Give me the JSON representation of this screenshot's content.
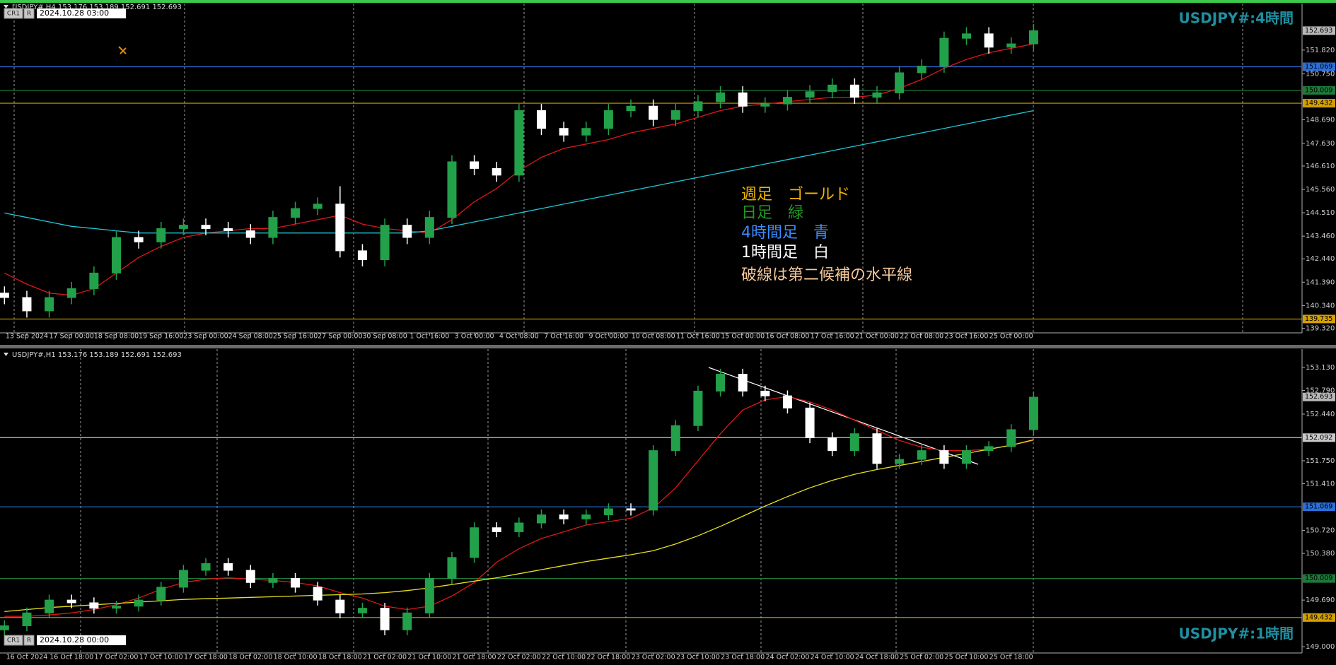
{
  "chart_data": [
    {
      "type": "candlestick",
      "header": "USDJPY#,H4  153.176 153.189 152.691 152.693",
      "buttons": [
        "CR1",
        "R"
      ],
      "date_label": "2024.10.28 03:00",
      "title": "USDJPY#:4時間",
      "annotations": [
        {
          "text": "週足　ゴールド",
          "color": "#f0b400"
        },
        {
          "text": "日足　緑",
          "color": "#1f9a1f"
        },
        {
          "text": "4時間足　青",
          "color": "#3a8cff"
        },
        {
          "text": "1時間足　白",
          "color": "#ffffff"
        },
        {
          "text": "破線は第二候補の水平線",
          "color": "#f5c89a"
        }
      ],
      "xlim": [
        -0.2,
        58
      ],
      "xticks": [
        {
          "value": 1,
          "label": "13 Sep 2024"
        },
        {
          "value": 3,
          "label": "17 Sep 00:00"
        },
        {
          "value": 5,
          "label": "18 Sep 08:00"
        },
        {
          "value": 7,
          "label": "19 Sep 16:00"
        },
        {
          "value": 9,
          "label": "23 Sep 00:00"
        },
        {
          "value": 11,
          "label": "24 Sep 08:00"
        },
        {
          "value": 13,
          "label": "25 Sep 16:00"
        },
        {
          "value": 15,
          "label": "27 Sep 00:00"
        },
        {
          "value": 17,
          "label": "30 Sep 08:00"
        },
        {
          "value": 19,
          "label": "1 Oct 16:00"
        },
        {
          "value": 21,
          "label": "3 Oct 00:00"
        },
        {
          "value": 23,
          "label": "4 Oct 08:00"
        },
        {
          "value": 25,
          "label": "7 Oct 16:00"
        },
        {
          "value": 27,
          "label": "9 Oct 00:00"
        },
        {
          "value": 29,
          "label": "10 Oct 08:00"
        },
        {
          "value": 31,
          "label": "11 Oct 16:00"
        },
        {
          "value": 33,
          "label": "15 Oct 00:00"
        },
        {
          "value": 35,
          "label": "16 Oct 08:00"
        },
        {
          "value": 37,
          "label": "17 Oct 16:00"
        },
        {
          "value": 39,
          "label": "21 Oct 00:00"
        },
        {
          "value": 41,
          "label": "22 Oct 08:00"
        },
        {
          "value": 43,
          "label": "23 Oct 16:00"
        },
        {
          "value": 45,
          "label": "25 Oct 00:00"
        }
      ],
      "ylim": [
        139.24,
        153.88
      ],
      "yticks": [
        {
          "value": 139.32,
          "label": "139.320"
        },
        {
          "value": 140.34,
          "label": "140.340"
        },
        {
          "value": 141.39,
          "label": "141.390"
        },
        {
          "value": 142.44,
          "label": "142.440"
        },
        {
          "value": 143.46,
          "label": "143.460"
        },
        {
          "value": 144.51,
          "label": "144.510"
        },
        {
          "value": 145.56,
          "label": "145.560"
        },
        {
          "value": 146.61,
          "label": "146.610"
        },
        {
          "value": 147.63,
          "label": "147.630"
        },
        {
          "value": 148.69,
          "label": "148.690"
        },
        {
          "value": 150.75,
          "label": "150.750"
        },
        {
          "value": 151.82,
          "label": "151.820"
        }
      ],
      "up_color": "#22a04a",
      "down_color": "#ffffff",
      "open": [
        140.9,
        140.7,
        140.1,
        140.7,
        141.1,
        141.8,
        143.4,
        143.2,
        143.8,
        143.95,
        143.8,
        143.7,
        143.4,
        144.3,
        144.7,
        144.9,
        142.8,
        142.4,
        143.95,
        143.4,
        144.3,
        146.8,
        146.5,
        146.2,
        149.1,
        148.3,
        148.0,
        148.3,
        149.1,
        149.3,
        148.7,
        149.1,
        149.5,
        149.9,
        149.3,
        149.4,
        149.7,
        149.95,
        150.25,
        149.7,
        149.9,
        150.8,
        151.1,
        152.35,
        152.55,
        151.95,
        152.1
      ],
      "high": [
        141.2,
        141.0,
        141.0,
        141.4,
        142.1,
        143.7,
        143.7,
        144.1,
        144.25,
        144.25,
        144.1,
        144.0,
        144.6,
        145.0,
        145.2,
        145.7,
        143.1,
        144.25,
        144.25,
        144.6,
        147.1,
        147.1,
        146.8,
        149.4,
        149.4,
        148.6,
        148.6,
        149.4,
        149.6,
        149.6,
        149.4,
        149.8,
        150.2,
        150.2,
        149.7,
        150.0,
        150.25,
        150.55,
        150.55,
        150.2,
        151.1,
        151.4,
        152.65,
        152.85,
        152.85,
        152.4,
        152.99
      ],
      "low": [
        140.4,
        139.8,
        139.8,
        140.4,
        140.8,
        141.5,
        142.9,
        142.9,
        143.5,
        143.5,
        143.4,
        143.1,
        143.1,
        144.0,
        144.4,
        142.5,
        142.1,
        142.1,
        143.1,
        143.1,
        144.0,
        146.2,
        145.9,
        145.9,
        148.0,
        147.7,
        147.7,
        148.0,
        148.8,
        148.4,
        148.4,
        148.8,
        149.2,
        149.0,
        149.0,
        149.1,
        149.4,
        149.65,
        149.4,
        149.4,
        149.6,
        150.5,
        150.8,
        152.05,
        151.65,
        151.65,
        151.8
      ],
      "close": [
        140.7,
        140.1,
        140.7,
        141.1,
        141.8,
        143.4,
        143.2,
        143.8,
        143.95,
        143.8,
        143.7,
        143.4,
        144.3,
        144.7,
        144.9,
        142.8,
        142.4,
        143.95,
        143.4,
        144.3,
        146.8,
        146.5,
        146.2,
        149.1,
        148.3,
        148.0,
        148.3,
        149.1,
        149.3,
        148.7,
        149.1,
        149.5,
        149.9,
        149.3,
        149.4,
        149.7,
        149.95,
        150.25,
        149.7,
        149.9,
        150.8,
        151.1,
        152.35,
        152.55,
        151.95,
        152.1,
        152.69
      ],
      "series": [
        {
          "color": "#e01818",
          "values": [
            141.8,
            141.3,
            140.9,
            140.8,
            141.1,
            141.8,
            142.5,
            143.0,
            143.4,
            143.6,
            143.7,
            143.8,
            143.8,
            144.0,
            144.2,
            144.4,
            144.0,
            143.8,
            143.7,
            143.6,
            144.2,
            145.0,
            145.6,
            146.4,
            147.0,
            147.4,
            147.6,
            147.8,
            148.1,
            148.3,
            148.5,
            148.8,
            149.1,
            149.3,
            149.4,
            149.5,
            149.6,
            149.7,
            149.7,
            149.8,
            150.1,
            150.5,
            151.0,
            151.4,
            151.7,
            151.9,
            152.1
          ]
        },
        {
          "color": "#1ec8d8",
          "values": [
            144.5,
            144.3,
            144.1,
            143.9,
            143.8,
            143.7,
            143.6,
            143.6,
            143.6,
            143.6,
            143.6,
            143.6,
            143.6,
            143.6,
            143.6,
            143.6,
            143.6,
            143.6,
            143.6,
            143.7,
            143.9,
            144.1,
            144.3,
            144.5,
            144.7,
            144.9,
            145.1,
            145.3,
            145.5,
            145.7,
            145.9,
            146.1,
            146.3,
            146.5,
            146.7,
            146.9,
            147.1,
            147.3,
            147.5,
            147.7,
            147.9,
            148.1,
            148.3,
            148.5,
            148.7,
            148.9,
            149.1
          ]
        }
      ],
      "levels": [
        {
          "value": 151.069,
          "color": "#2a6fdb"
        },
        {
          "value": 150.009,
          "color": "#1e7a3a"
        },
        {
          "value": 149.432,
          "color": "#d4a000"
        },
        {
          "value": 139.735,
          "color": "#d4a000"
        }
      ],
      "current_price": 152.693
    },
    {
      "type": "candlestick",
      "header": "USDJPY#,H1  153.176 153.189 152.691 152.693",
      "buttons": [
        "CR1",
        "R"
      ],
      "date_label": "2024.10.28 00:00",
      "title": "USDJPY#:1時間",
      "xlim": [
        -0.2,
        58
      ],
      "xticks": [
        {
          "value": 1,
          "label": "16 Oct 2024"
        },
        {
          "value": 3,
          "label": "16 Oct 18:00"
        },
        {
          "value": 5,
          "label": "17 Oct 02:00"
        },
        {
          "value": 7,
          "label": "17 Oct 10:00"
        },
        {
          "value": 9,
          "label": "17 Oct 18:00"
        },
        {
          "value": 11,
          "label": "18 Oct 02:00"
        },
        {
          "value": 13,
          "label": "18 Oct 10:00"
        },
        {
          "value": 15,
          "label": "18 Oct 18:00"
        },
        {
          "value": 17,
          "label": "21 Oct 02:00"
        },
        {
          "value": 19,
          "label": "21 Oct 10:00"
        },
        {
          "value": 21,
          "label": "21 Oct 18:00"
        },
        {
          "value": 23,
          "label": "22 Oct 02:00"
        },
        {
          "value": 25,
          "label": "22 Oct 10:00"
        },
        {
          "value": 27,
          "label": "22 Oct 18:00"
        },
        {
          "value": 29,
          "label": "23 Oct 02:00"
        },
        {
          "value": 31,
          "label": "23 Oct 10:00"
        },
        {
          "value": 33,
          "label": "23 Oct 18:00"
        },
        {
          "value": 35,
          "label": "24 Oct 02:00"
        },
        {
          "value": 37,
          "label": "24 Oct 10:00"
        },
        {
          "value": 39,
          "label": "24 Oct 18:00"
        },
        {
          "value": 41,
          "label": "25 Oct 02:00"
        },
        {
          "value": 43,
          "label": "25 Oct 10:00"
        },
        {
          "value": 45,
          "label": "25 Oct 18:00"
        }
      ],
      "ylim": [
        148.96,
        153.38
      ],
      "yticks": [
        {
          "value": 149.0,
          "label": "149.000"
        },
        {
          "value": 149.69,
          "label": "149.690"
        },
        {
          "value": 150.38,
          "label": "150.380"
        },
        {
          "value": 150.72,
          "label": "150.720"
        },
        {
          "value": 151.41,
          "label": "151.410"
        },
        {
          "value": 151.75,
          "label": "151.750"
        },
        {
          "value": 152.44,
          "label": "152.440"
        },
        {
          "value": 152.79,
          "label": "152.790"
        },
        {
          "value": 153.13,
          "label": "153.130"
        }
      ],
      "up_color": "#22a04a",
      "down_color": "#ffffff",
      "open": [
        149.25,
        149.31,
        149.5,
        149.69,
        149.65,
        149.57,
        149.6,
        149.69,
        149.88,
        150.13,
        150.23,
        150.13,
        149.95,
        150.01,
        149.88,
        149.69,
        149.5,
        149.57,
        149.25,
        149.5,
        150.01,
        150.32,
        150.76,
        150.7,
        150.83,
        150.95,
        150.89,
        150.95,
        151.04,
        151.02,
        151.9,
        152.27,
        152.78,
        153.03,
        152.78,
        152.71,
        152.53,
        152.09,
        151.9,
        152.15,
        151.71,
        151.77,
        151.9,
        151.71,
        151.9,
        151.96,
        152.21
      ],
      "high": [
        149.39,
        149.58,
        149.77,
        149.77,
        149.73,
        149.68,
        149.77,
        149.96,
        150.21,
        150.31,
        150.31,
        150.21,
        150.09,
        150.09,
        149.96,
        149.77,
        149.65,
        149.65,
        149.58,
        150.09,
        150.4,
        150.84,
        150.84,
        150.91,
        151.03,
        151.03,
        151.03,
        151.12,
        151.12,
        151.98,
        152.35,
        152.86,
        153.11,
        153.11,
        152.86,
        152.79,
        152.61,
        152.17,
        152.23,
        152.23,
        151.85,
        151.98,
        151.98,
        151.98,
        152.04,
        152.29,
        152.77
      ],
      "low": [
        149.17,
        149.23,
        149.42,
        149.57,
        149.49,
        149.49,
        149.52,
        149.61,
        149.8,
        150.05,
        150.05,
        149.87,
        149.87,
        149.8,
        149.61,
        149.42,
        149.42,
        149.17,
        149.17,
        149.42,
        149.93,
        150.24,
        150.62,
        150.62,
        150.75,
        150.81,
        150.81,
        150.87,
        150.94,
        150.94,
        151.82,
        152.19,
        152.7,
        152.7,
        152.63,
        152.45,
        152.01,
        151.82,
        151.82,
        151.63,
        151.63,
        151.69,
        151.63,
        151.63,
        151.82,
        151.88,
        152.13
      ],
      "close": [
        149.31,
        149.5,
        149.69,
        149.65,
        149.57,
        149.6,
        149.69,
        149.88,
        150.13,
        150.23,
        150.13,
        149.95,
        150.01,
        149.88,
        149.69,
        149.5,
        149.57,
        149.25,
        149.5,
        150.01,
        150.32,
        150.76,
        150.7,
        150.83,
        150.95,
        150.89,
        150.95,
        151.04,
        151.02,
        151.9,
        152.27,
        152.78,
        153.03,
        152.78,
        152.71,
        152.53,
        152.09,
        151.9,
        152.15,
        151.71,
        151.77,
        151.9,
        151.71,
        151.9,
        151.96,
        152.21,
        152.69
      ],
      "series": [
        {
          "color": "#e01818",
          "values": [
            149.45,
            149.45,
            149.47,
            149.5,
            149.55,
            149.62,
            149.72,
            149.85,
            149.95,
            150.0,
            150.02,
            150.0,
            149.98,
            149.95,
            149.9,
            149.8,
            149.72,
            149.6,
            149.55,
            149.6,
            149.75,
            149.95,
            150.25,
            150.45,
            150.6,
            150.7,
            150.8,
            150.85,
            150.9,
            151.05,
            151.35,
            151.75,
            152.15,
            152.5,
            152.65,
            152.7,
            152.62,
            152.5,
            152.35,
            152.2,
            152.05,
            151.95,
            151.9,
            151.9,
            151.92,
            151.98,
            152.05
          ]
        },
        {
          "color": "#e8e020",
          "values": [
            149.52,
            149.55,
            149.58,
            149.6,
            149.62,
            149.64,
            149.66,
            149.68,
            149.7,
            149.71,
            149.72,
            149.73,
            149.74,
            149.75,
            149.76,
            149.77,
            149.78,
            149.8,
            149.83,
            149.87,
            149.92,
            149.97,
            150.02,
            150.08,
            150.14,
            150.2,
            150.26,
            150.31,
            150.36,
            150.42,
            150.52,
            150.64,
            150.78,
            150.93,
            151.08,
            151.22,
            151.35,
            151.46,
            151.55,
            151.62,
            151.68,
            151.74,
            151.8,
            151.86,
            151.92,
            151.98,
            152.06
          ]
        }
      ],
      "levels": [
        {
          "value": 152.092,
          "color": "#c8c8c8"
        },
        {
          "value": 151.069,
          "color": "#2a6fdb"
        },
        {
          "value": 150.009,
          "color": "#1e7a3a"
        },
        {
          "value": 149.432,
          "color": "#d4a000"
        }
      ],
      "current_price": 152.693
    }
  ]
}
